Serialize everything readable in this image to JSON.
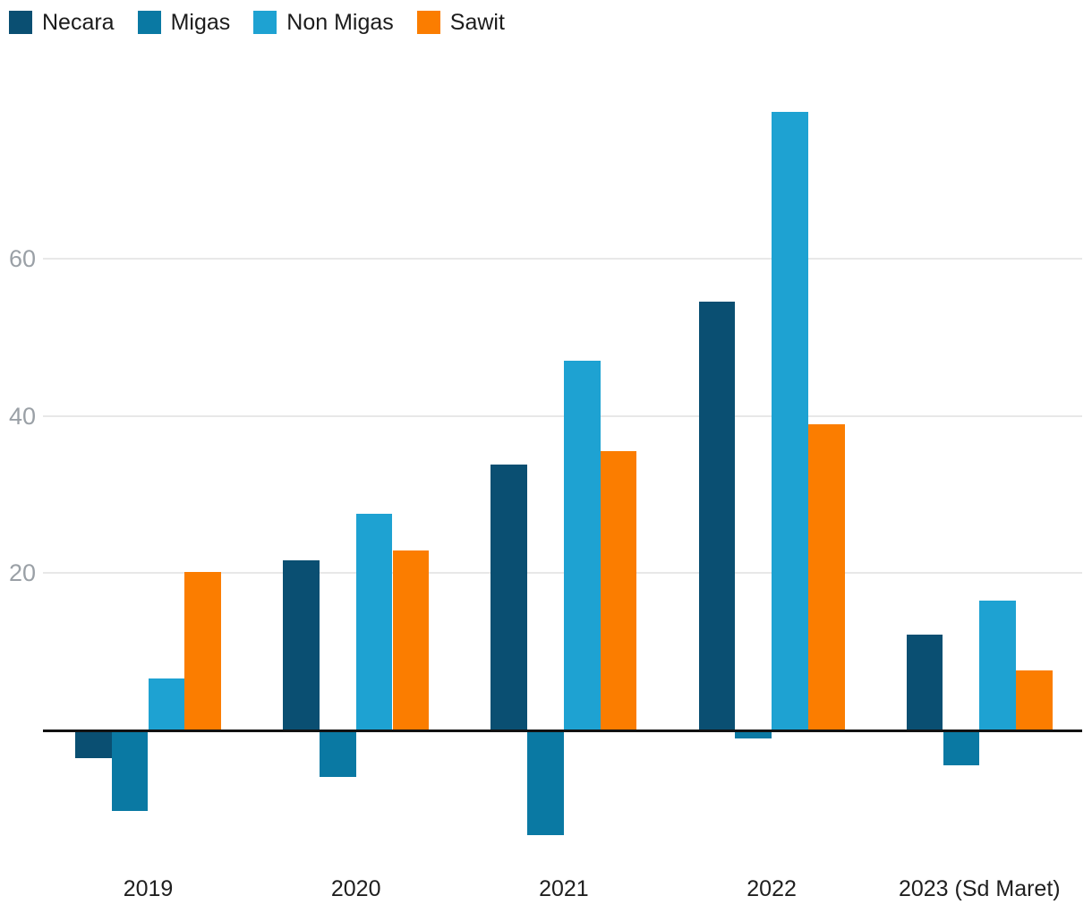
{
  "chart_data": {
    "type": "bar",
    "title": "",
    "xlabel": "",
    "ylabel": "",
    "grid": true,
    "legend_position": "top-left",
    "categories": [
      "2019",
      "2020",
      "2021",
      "2022",
      "2023 (Sd Maret)"
    ],
    "series": [
      {
        "name": "Necara",
        "color": "#0a4f72",
        "values": [
          -3.5,
          21.6,
          33.8,
          54.5,
          12.2
        ]
      },
      {
        "name": "Migas",
        "color": "#0a79a3",
        "values": [
          -10.2,
          -5.9,
          -13.3,
          -1.0,
          -4.4
        ]
      },
      {
        "name": "Non Migas",
        "color": "#1ea2d2",
        "values": [
          6.6,
          27.6,
          47.0,
          78.7,
          16.5
        ]
      },
      {
        "name": "Sawit",
        "color": "#fb7d00",
        "values": [
          20.2,
          22.9,
          35.5,
          39.0,
          7.6
        ]
      }
    ],
    "yticks": [
      20,
      40,
      60
    ],
    "ylim": [
      -16,
      80
    ],
    "axis_colors": {
      "gridline": "#e8e8e8",
      "zero_line": "#121212",
      "ytick_text": "#9aa0a6",
      "xtick_text": "#1f1f1f"
    }
  }
}
